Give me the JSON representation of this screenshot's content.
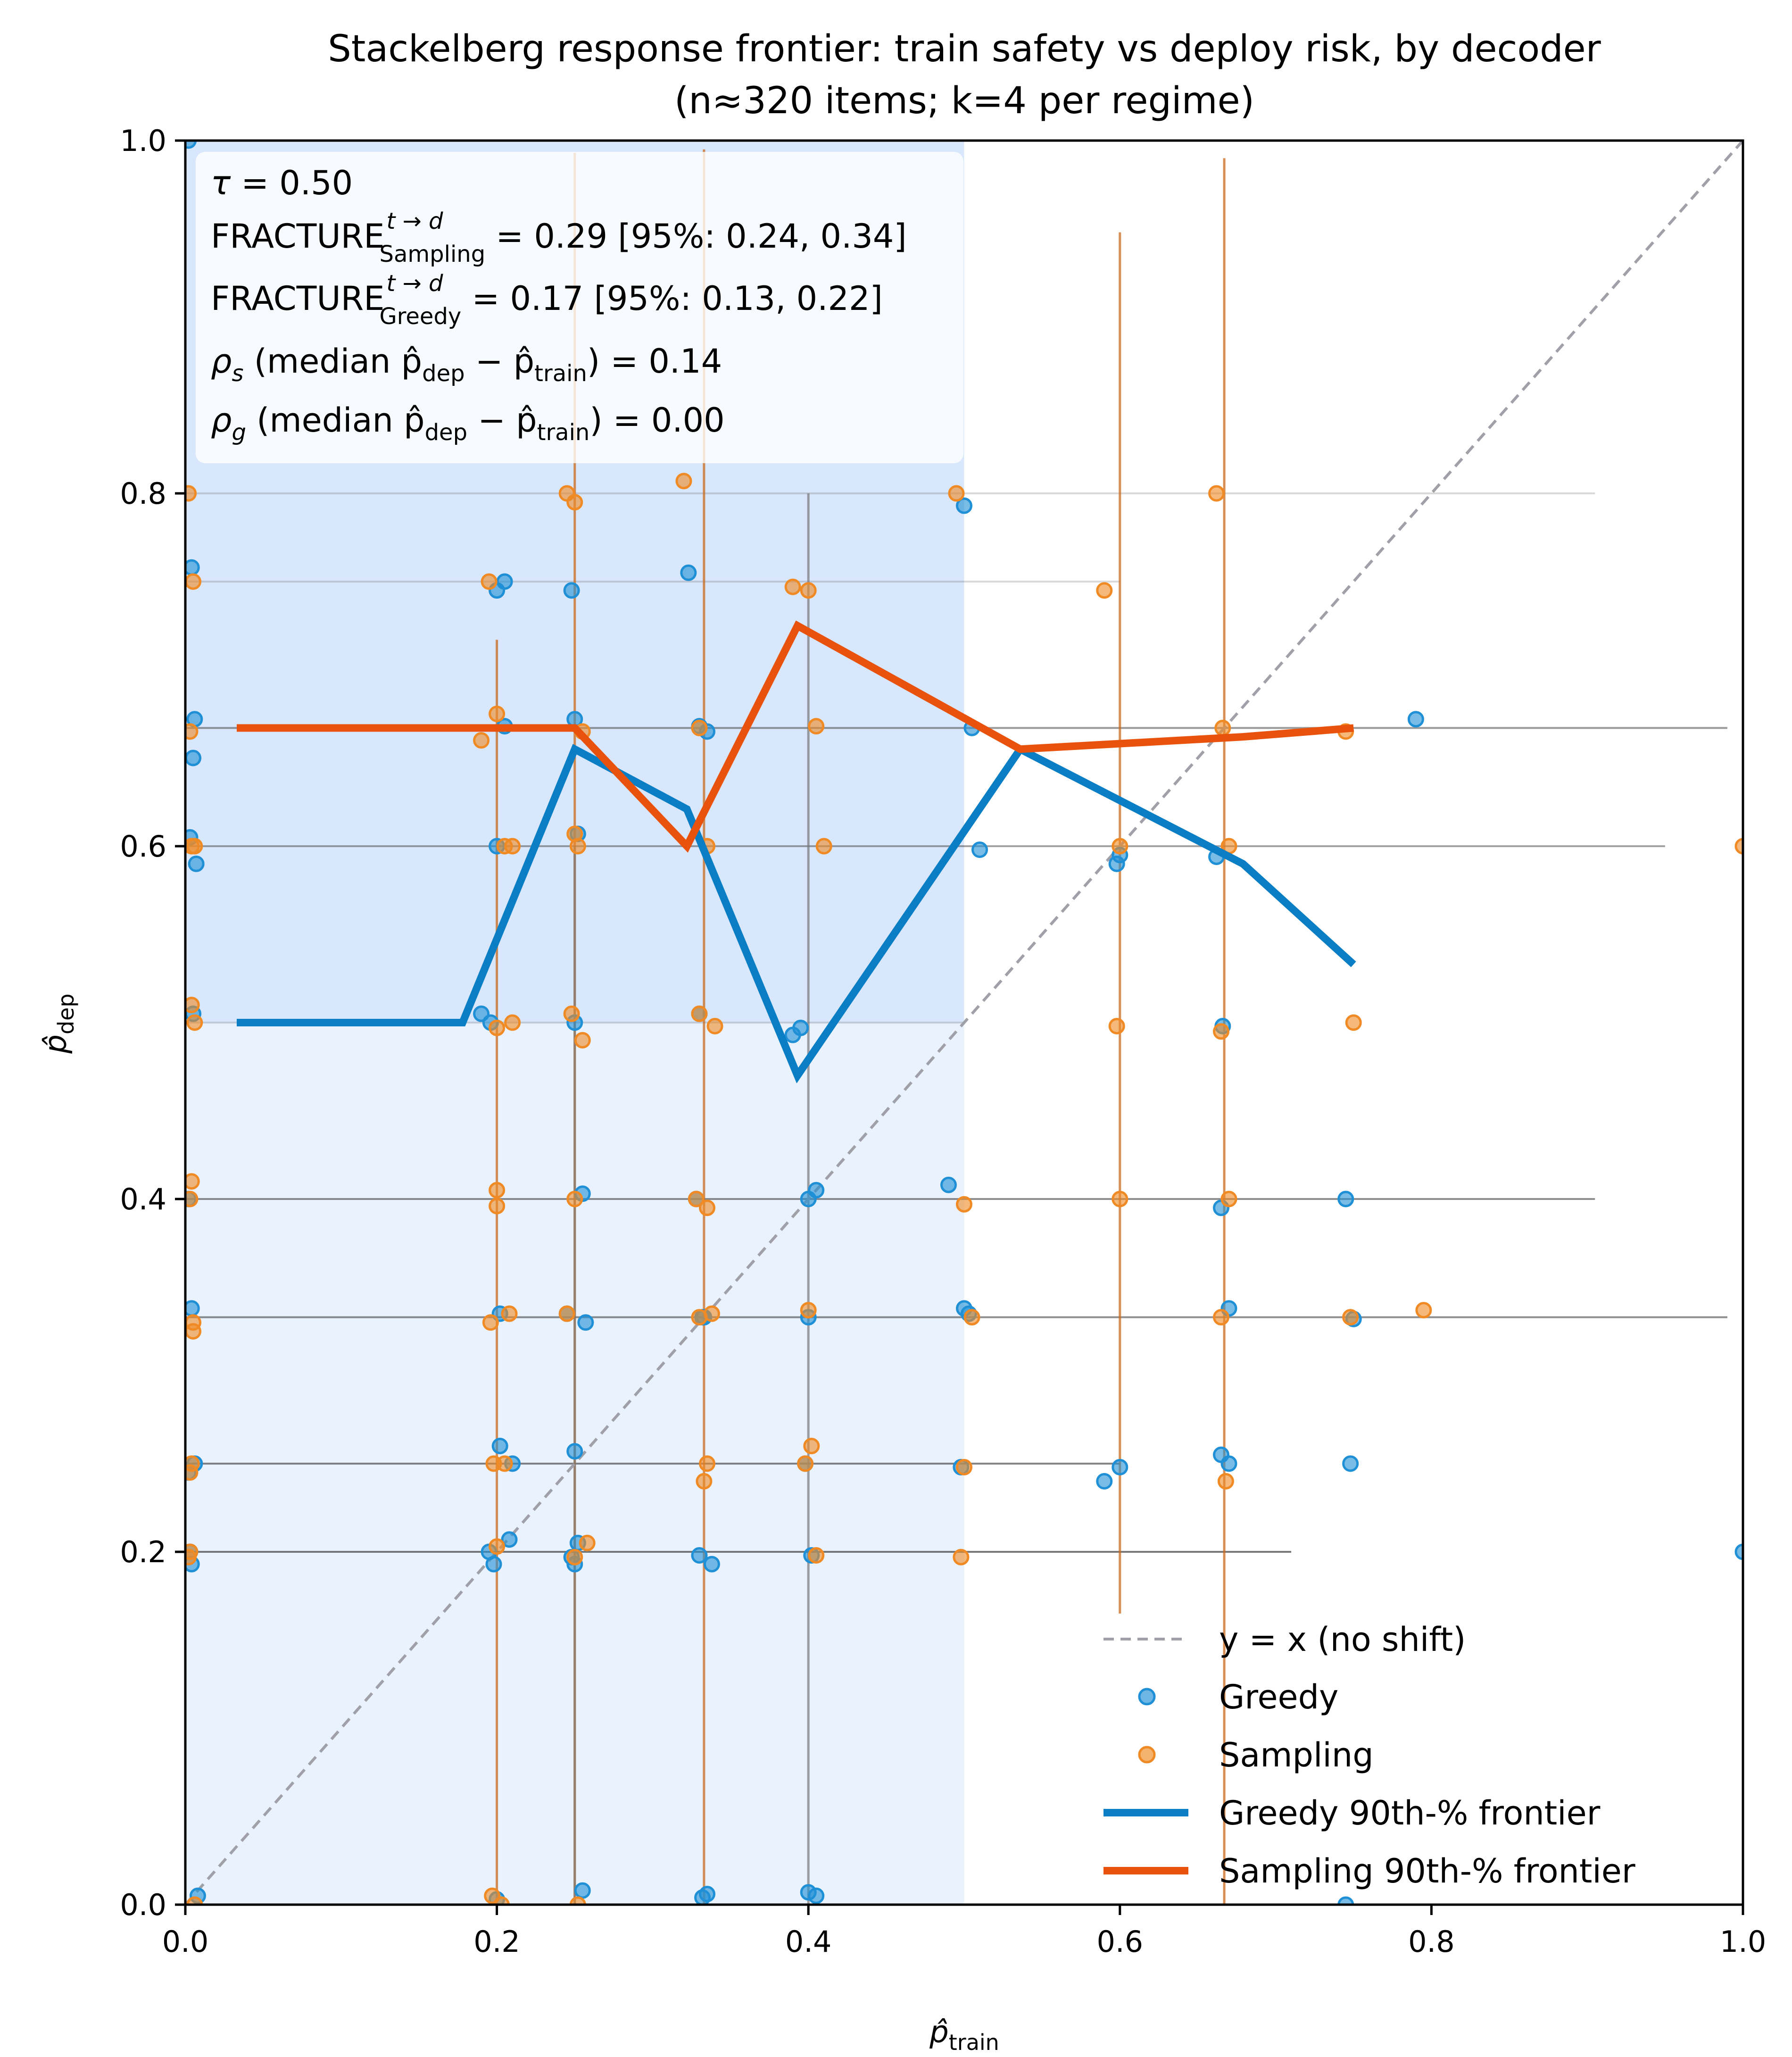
{
  "chart_data": {
    "type": "scatter",
    "title": "Stackelberg response frontier: train safety vs deploy risk, by decoder",
    "subtitle": "(n≈320 items; k=4 per regime)",
    "xlabel": "p̂",
    "xlabel_sub": "train",
    "ylabel": "p̂",
    "ylabel_sub": "dep",
    "xlim": [
      0,
      1
    ],
    "ylim": [
      0,
      1
    ],
    "xticks": [
      0.0,
      0.2,
      0.4,
      0.6,
      0.8,
      1.0
    ],
    "yticks": [
      0.0,
      0.2,
      0.4,
      0.6,
      0.8,
      1.0
    ],
    "xtick_labels": [
      "0.0",
      "0.2",
      "0.4",
      "0.6",
      "0.8",
      "1.0"
    ],
    "ytick_labels": [
      "0.0",
      "0.2",
      "0.4",
      "0.6",
      "0.8",
      "1.0"
    ],
    "tau_region": {
      "x": [
        0,
        0.5
      ],
      "y": [
        0,
        1
      ],
      "upper_y": [
        0.5,
        1
      ]
    },
    "annotations": {
      "tau": {
        "prefix": "τ",
        "text": " = 0.50"
      },
      "fracture_sampling": {
        "main": "FRACTURE",
        "sup": "t → d",
        "sub": "Sampling",
        "text": " = 0.29 [95%: 0.24, 0.34]"
      },
      "fracture_greedy": {
        "main": "FRACTURE",
        "sup": "t → d",
        "sub": "Greedy",
        "text": " = 0.17 [95%: 0.13, 0.22]"
      },
      "rho_s": {
        "sym": "ρ",
        "sub": "s",
        "mid": " (median p̂",
        "sub2": "dep",
        "mid2": " − p̂",
        "sub3": "train",
        "text": ") = 0.14"
      },
      "rho_g": {
        "sym": "ρ",
        "sub": "g",
        "mid": " (median p̂",
        "sub2": "dep",
        "mid2": " − p̂",
        "sub3": "train",
        "text": ") = 0.00"
      }
    },
    "legend": {
      "identity": "y = x (no shift)",
      "greedy": "Greedy",
      "sampling": "Sampling",
      "greedy_frontier": "Greedy 90th-% frontier",
      "sampling_frontier": "Sampling 90th-% frontier"
    },
    "colors": {
      "greedy": "#1f8fd6",
      "sampling": "#f08a24",
      "greedy_line": "#0a7ec4",
      "sampling_line": "#e8520c",
      "region_light": "#e9f2fd",
      "region_dark": "#d8e7fb",
      "identity": "#a0a0a8",
      "vline_orange": "#c96a1c",
      "vline_gray": "#777777",
      "hline": "#333333"
    },
    "series": [
      {
        "name": "Greedy 90th-% frontier",
        "kind": "line",
        "x": [
          0.033,
          0.178,
          0.25,
          0.322,
          0.393,
          0.536,
          0.679,
          0.75
        ],
        "y": [
          0.5,
          0.5,
          0.655,
          0.621,
          0.47,
          0.655,
          0.59,
          0.533
        ]
      },
      {
        "name": "Sampling 90th-% frontier",
        "kind": "line",
        "x": [
          0.033,
          0.25,
          0.322,
          0.393,
          0.536,
          0.679,
          0.75
        ],
        "y": [
          0.667,
          0.667,
          0.6,
          0.725,
          0.655,
          0.662,
          0.667
        ]
      },
      {
        "name": "Greedy",
        "kind": "scatter",
        "x": [
          0.002,
          0.004,
          0.006,
          0.003,
          0.005,
          0.002,
          0.004,
          0.006,
          0.003,
          0.008,
          0.005,
          0.007,
          0.002,
          0.004,
          0.19,
          0.196,
          0.2,
          0.205,
          0.21,
          0.195,
          0.202,
          0.2,
          0.208,
          0.198,
          0.2,
          0.205,
          0.202,
          0.248,
          0.25,
          0.252,
          0.25,
          0.255,
          0.245,
          0.25,
          0.252,
          0.248,
          0.255,
          0.25,
          0.257,
          0.323,
          0.33,
          0.335,
          0.33,
          0.328,
          0.333,
          0.338,
          0.33,
          0.332,
          0.335,
          0.332,
          0.39,
          0.395,
          0.4,
          0.405,
          0.4,
          0.398,
          0.402,
          0.405,
          0.4,
          0.49,
          0.5,
          0.505,
          0.51,
          0.503,
          0.5,
          0.498,
          0.59,
          0.6,
          0.598,
          0.6,
          0.662,
          0.666,
          0.67,
          0.665,
          0.67,
          0.665,
          0.745,
          0.75,
          0.748,
          0.745,
          0.79,
          1.0
        ],
        "y": [
          1.0,
          0.758,
          0.672,
          0.605,
          0.505,
          0.4,
          0.338,
          0.25,
          0.2,
          0.005,
          0.65,
          0.59,
          0.245,
          0.193,
          0.505,
          0.5,
          0.6,
          0.668,
          0.25,
          0.2,
          0.335,
          0.003,
          0.207,
          0.193,
          0.745,
          0.75,
          0.26,
          0.745,
          0.672,
          0.607,
          0.5,
          0.403,
          0.335,
          0.257,
          0.205,
          0.197,
          0.008,
          0.193,
          0.33,
          0.755,
          0.668,
          0.665,
          0.505,
          0.4,
          0.333,
          0.193,
          0.198,
          0.004,
          0.006,
          0.333,
          0.493,
          0.497,
          0.4,
          0.405,
          0.333,
          0.25,
          0.198,
          0.005,
          0.007,
          0.408,
          0.793,
          0.667,
          0.598,
          0.335,
          0.338,
          0.248,
          0.24,
          0.595,
          0.59,
          0.248,
          0.594,
          0.498,
          0.25,
          0.395,
          0.338,
          0.255,
          0.4,
          0.332,
          0.25,
          0.0,
          0.672,
          0.2
        ]
      },
      {
        "name": "Sampling",
        "kind": "scatter",
        "x": [
          0.002,
          0.005,
          0.003,
          0.004,
          0.006,
          0.003,
          0.005,
          0.004,
          0.003,
          0.006,
          0.004,
          0.005,
          0.003,
          0.002,
          0.006,
          0.004,
          0.19,
          0.2,
          0.205,
          0.21,
          0.195,
          0.2,
          0.208,
          0.198,
          0.2,
          0.203,
          0.196,
          0.205,
          0.2,
          0.21,
          0.2,
          0.197,
          0.245,
          0.25,
          0.255,
          0.25,
          0.252,
          0.248,
          0.255,
          0.25,
          0.245,
          0.258,
          0.25,
          0.252,
          0.32,
          0.33,
          0.335,
          0.34,
          0.33,
          0.328,
          0.335,
          0.33,
          0.338,
          0.335,
          0.333,
          0.39,
          0.4,
          0.405,
          0.41,
          0.4,
          0.398,
          0.402,
          0.405,
          0.495,
          0.5,
          0.505,
          0.5,
          0.498,
          0.59,
          0.6,
          0.598,
          0.6,
          0.662,
          0.666,
          0.67,
          0.665,
          0.67,
          0.665,
          0.668,
          0.745,
          0.75,
          0.748,
          0.795,
          1.0
        ],
        "y": [
          0.8,
          0.75,
          0.665,
          0.6,
          0.5,
          0.4,
          0.33,
          0.25,
          0.2,
          0.0,
          0.41,
          0.325,
          0.245,
          0.197,
          0.6,
          0.51,
          0.66,
          0.675,
          0.6,
          0.5,
          0.75,
          0.405,
          0.335,
          0.25,
          0.203,
          0.0,
          0.33,
          0.25,
          0.396,
          0.6,
          0.497,
          0.005,
          0.8,
          0.795,
          0.665,
          0.607,
          0.6,
          0.505,
          0.49,
          0.4,
          0.335,
          0.205,
          0.197,
          0.0,
          0.807,
          0.667,
          0.6,
          0.498,
          0.505,
          0.4,
          0.395,
          0.333,
          0.335,
          0.25,
          0.24,
          0.747,
          0.745,
          0.668,
          0.6,
          0.337,
          0.25,
          0.26,
          0.198,
          0.8,
          0.397,
          0.333,
          0.248,
          0.197,
          0.745,
          0.6,
          0.498,
          0.4,
          0.8,
          0.667,
          0.6,
          0.495,
          0.4,
          0.333,
          0.24,
          0.665,
          0.5,
          0.333,
          0.337,
          0.6
        ]
      }
    ],
    "vlines": [
      {
        "x": 0.2,
        "y": [
          0.0,
          0.717
        ],
        "color": "orange"
      },
      {
        "x": 0.25,
        "y": [
          0.0,
          0.993
        ],
        "color": "orange"
      },
      {
        "x": 0.25,
        "y": [
          0.0,
          0.6
        ],
        "color": "gray"
      },
      {
        "x": 0.333,
        "y": [
          0.0,
          0.995
        ],
        "color": "orange"
      },
      {
        "x": 0.4,
        "y": [
          0.0,
          0.8
        ],
        "color": "gray"
      },
      {
        "x": 0.6,
        "y": [
          0.165,
          0.948
        ],
        "color": "orange"
      },
      {
        "x": 0.667,
        "y": [
          0.0,
          0.99
        ],
        "color": "orange"
      }
    ],
    "hlines": [
      {
        "y": 0.8,
        "x": [
          0.0,
          0.905
        ],
        "alpha": 0.18
      },
      {
        "y": 0.75,
        "x": [
          0.0,
          0.6
        ],
        "alpha": 0.18
      },
      {
        "y": 0.667,
        "x": [
          0.0,
          0.99
        ],
        "alpha": 0.5
      },
      {
        "y": 0.6,
        "x": [
          0.0,
          0.95
        ],
        "alpha": 0.45
      },
      {
        "y": 0.5,
        "x": [
          0.0,
          0.5
        ],
        "alpha": 0.18
      },
      {
        "y": 0.4,
        "x": [
          0.0,
          0.905
        ],
        "alpha": 0.55
      },
      {
        "y": 0.333,
        "x": [
          0.0,
          0.99
        ],
        "alpha": 0.55
      },
      {
        "y": 0.25,
        "x": [
          0.0,
          0.6
        ],
        "alpha": 0.6
      },
      {
        "y": 0.2,
        "x": [
          0.0,
          0.71
        ],
        "alpha": 0.65
      }
    ]
  }
}
